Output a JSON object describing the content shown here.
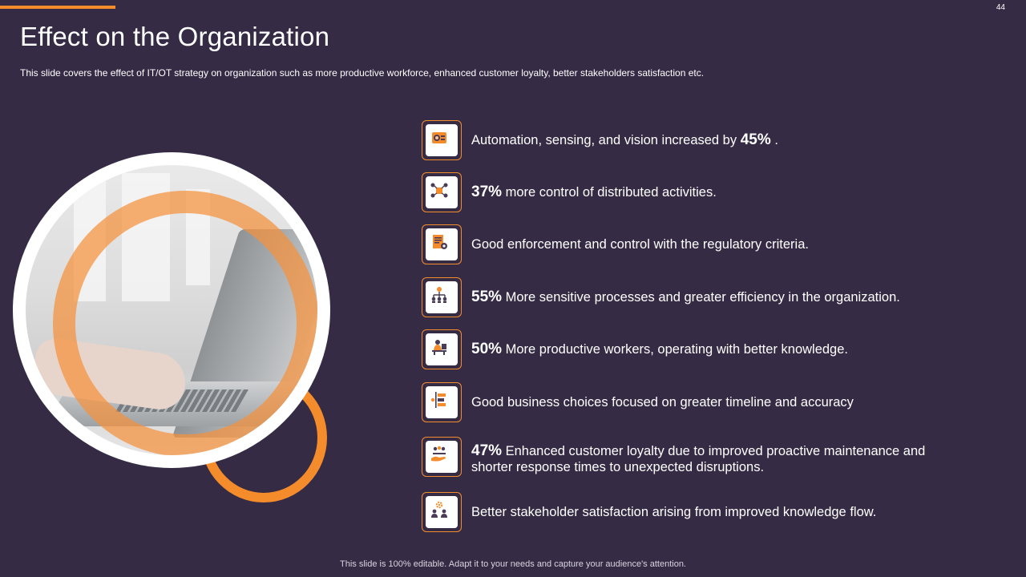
{
  "slide": {
    "page_number": "44",
    "title": "Effect on the Organization",
    "subtitle": "This slide covers the effect of IT/OT strategy on organization such as more productive workforce, enhanced customer loyalty, better stakeholders satisfaction etc.",
    "footer": "This slide is 100% editable. Adapt it to your needs and capture your audience's attention."
  },
  "items": [
    {
      "icon": "automation-icon",
      "pre": "Automation, sensing, and vision increased by ",
      "pct": "45%",
      "post": " ."
    },
    {
      "icon": "distributed-control-icon",
      "pre": "",
      "pct": "37%",
      "post": " more control of distributed activities."
    },
    {
      "icon": "regulatory-document-icon",
      "pre": "Good enforcement and control with the regulatory criteria.",
      "pct": "",
      "post": ""
    },
    {
      "icon": "org-hierarchy-icon",
      "pre": "",
      "pct": "55%",
      "post": " More sensitive processes and greater efficiency in the organization."
    },
    {
      "icon": "worker-desk-icon",
      "pre": "",
      "pct": "50%",
      "post": " More productive workers, operating with better knowledge."
    },
    {
      "icon": "timeline-choices-icon",
      "pre": "Good business choices focused on greater timeline and accuracy",
      "pct": "",
      "post": ""
    },
    {
      "icon": "customer-loyalty-icon",
      "pre": "",
      "pct": "47%",
      "post": " Enhanced customer loyalty due to improved proactive maintenance and",
      "line2": "shorter response times to unexpected disruptions."
    },
    {
      "icon": "stakeholder-gear-icon",
      "pre": "Better stakeholder satisfaction arising from improved knowledge flow.",
      "pct": "",
      "post": ""
    }
  ],
  "colors": {
    "background": "#352b45",
    "accent": "#f58c2c",
    "text": "#ffffff"
  }
}
